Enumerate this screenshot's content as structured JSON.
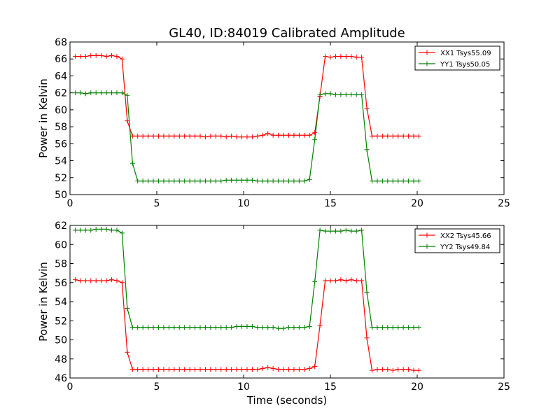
{
  "figure": {
    "title": "GL40, ID:84019 Calibrated Amplitude"
  },
  "chart_data": [
    {
      "type": "line",
      "title": "GL40, ID:84019 Calibrated Amplitude",
      "xlabel": "",
      "ylabel": "Power in Kelvin",
      "xlim": [
        0,
        25
      ],
      "ylim": [
        50,
        68
      ],
      "xticks": [
        0,
        5,
        10,
        15,
        20,
        25
      ],
      "yticks": [
        50,
        52,
        54,
        56,
        58,
        60,
        62,
        64,
        66,
        68
      ],
      "grid": false,
      "legend": "top-right",
      "x": [
        0.3,
        0.6,
        0.9,
        1.2,
        1.5,
        1.8,
        2.1,
        2.4,
        2.7,
        3.0,
        3.3,
        3.6,
        3.9,
        4.2,
        4.5,
        4.8,
        5.1,
        5.4,
        5.7,
        6.0,
        6.3,
        6.6,
        6.9,
        7.2,
        7.5,
        7.8,
        8.1,
        8.4,
        8.7,
        9.0,
        9.3,
        9.6,
        9.9,
        10.2,
        10.5,
        10.8,
        11.1,
        11.4,
        11.7,
        12.0,
        12.3,
        12.6,
        12.9,
        13.2,
        13.5,
        13.8,
        14.1,
        14.4,
        14.7,
        15.0,
        15.3,
        15.6,
        15.9,
        16.2,
        16.5,
        16.8,
        17.1,
        17.4,
        17.7,
        18.0,
        18.3,
        18.6,
        18.9,
        19.2,
        19.5,
        19.8,
        20.1
      ],
      "series": [
        {
          "name": "XX1 Tsys55.09",
          "color": "#ff0000",
          "values": [
            66.3,
            66.3,
            66.3,
            66.4,
            66.4,
            66.4,
            66.3,
            66.4,
            66.3,
            66.0,
            58.7,
            56.9,
            56.9,
            56.9,
            56.9,
            56.9,
            56.9,
            56.9,
            56.9,
            56.9,
            56.9,
            56.9,
            56.9,
            56.9,
            56.9,
            56.8,
            56.9,
            56.9,
            56.9,
            56.8,
            56.9,
            56.8,
            56.8,
            56.8,
            56.8,
            56.9,
            57.0,
            57.2,
            57.0,
            57.0,
            57.0,
            57.0,
            57.0,
            57.0,
            57.0,
            57.0,
            57.3,
            61.6,
            66.3,
            66.2,
            66.3,
            66.3,
            66.3,
            66.3,
            66.2,
            66.2,
            60.2,
            56.9,
            56.9,
            56.9,
            56.9,
            56.9,
            56.9,
            56.9,
            56.9,
            56.9,
            56.9
          ]
        },
        {
          "name": "YY1 Tsys50.05",
          "color": "#008000",
          "values": [
            62.0,
            62.0,
            61.9,
            62.0,
            62.0,
            62.0,
            62.0,
            62.0,
            62.0,
            62.0,
            61.7,
            53.7,
            51.6,
            51.6,
            51.6,
            51.6,
            51.6,
            51.6,
            51.6,
            51.6,
            51.6,
            51.6,
            51.6,
            51.6,
            51.6,
            51.6,
            51.6,
            51.6,
            51.6,
            51.7,
            51.7,
            51.7,
            51.7,
            51.7,
            51.7,
            51.6,
            51.6,
            51.6,
            51.6,
            51.6,
            51.6,
            51.6,
            51.6,
            51.6,
            51.6,
            51.8,
            56.5,
            61.8,
            61.9,
            61.9,
            61.8,
            61.8,
            61.8,
            61.8,
            61.8,
            61.8,
            55.3,
            51.6,
            51.6,
            51.6,
            51.6,
            51.6,
            51.6,
            51.6,
            51.6,
            51.6,
            51.6
          ]
        }
      ]
    },
    {
      "type": "line",
      "title": "",
      "xlabel": "Time (seconds)",
      "ylabel": "Power in Kelvin",
      "xlim": [
        0,
        25
      ],
      "ylim": [
        46,
        62
      ],
      "xticks": [
        0,
        5,
        10,
        15,
        20,
        25
      ],
      "yticks": [
        46,
        48,
        50,
        52,
        54,
        56,
        58,
        60,
        62
      ],
      "grid": false,
      "legend": "top-right",
      "x": [
        0.3,
        0.6,
        0.9,
        1.2,
        1.5,
        1.8,
        2.1,
        2.4,
        2.7,
        3.0,
        3.3,
        3.6,
        3.9,
        4.2,
        4.5,
        4.8,
        5.1,
        5.4,
        5.7,
        6.0,
        6.3,
        6.6,
        6.9,
        7.2,
        7.5,
        7.8,
        8.1,
        8.4,
        8.7,
        9.0,
        9.3,
        9.6,
        9.9,
        10.2,
        10.5,
        10.8,
        11.1,
        11.4,
        11.7,
        12.0,
        12.3,
        12.6,
        12.9,
        13.2,
        13.5,
        13.8,
        14.1,
        14.4,
        14.7,
        15.0,
        15.3,
        15.6,
        15.9,
        16.2,
        16.5,
        16.8,
        17.1,
        17.4,
        17.7,
        18.0,
        18.3,
        18.6,
        18.9,
        19.2,
        19.5,
        19.8,
        20.1
      ],
      "series": [
        {
          "name": "XX2 Tsys45.66",
          "color": "#ff0000",
          "values": [
            56.3,
            56.2,
            56.2,
            56.2,
            56.2,
            56.2,
            56.2,
            56.3,
            56.2,
            56.0,
            48.7,
            46.9,
            46.9,
            46.9,
            46.9,
            46.9,
            46.9,
            46.9,
            46.9,
            46.9,
            46.9,
            46.9,
            46.9,
            46.9,
            46.9,
            46.9,
            46.9,
            46.9,
            46.9,
            46.9,
            46.9,
            46.9,
            46.9,
            46.9,
            46.9,
            46.9,
            47.0,
            47.1,
            47.0,
            46.9,
            46.9,
            46.9,
            46.9,
            46.9,
            46.9,
            47.0,
            47.2,
            51.5,
            56.2,
            56.2,
            56.2,
            56.3,
            56.2,
            56.3,
            56.2,
            56.2,
            50.2,
            46.8,
            46.9,
            46.9,
            46.9,
            46.8,
            46.9,
            46.9,
            46.9,
            46.8,
            46.8
          ]
        },
        {
          "name": "YY2 Tsys49.84",
          "color": "#008000",
          "values": [
            61.5,
            61.5,
            61.5,
            61.5,
            61.6,
            61.6,
            61.6,
            61.5,
            61.5,
            61.2,
            53.3,
            51.3,
            51.3,
            51.3,
            51.3,
            51.3,
            51.3,
            51.3,
            51.3,
            51.3,
            51.3,
            51.3,
            51.3,
            51.3,
            51.3,
            51.3,
            51.3,
            51.3,
            51.3,
            51.3,
            51.3,
            51.4,
            51.4,
            51.4,
            51.4,
            51.3,
            51.3,
            51.3,
            51.3,
            51.2,
            51.2,
            51.3,
            51.3,
            51.3,
            51.3,
            51.4,
            56.1,
            61.5,
            61.4,
            61.4,
            61.4,
            61.4,
            61.5,
            61.4,
            61.4,
            61.5,
            55.0,
            51.3,
            51.3,
            51.3,
            51.3,
            51.3,
            51.3,
            51.3,
            51.3,
            51.3,
            51.3
          ]
        }
      ]
    }
  ]
}
